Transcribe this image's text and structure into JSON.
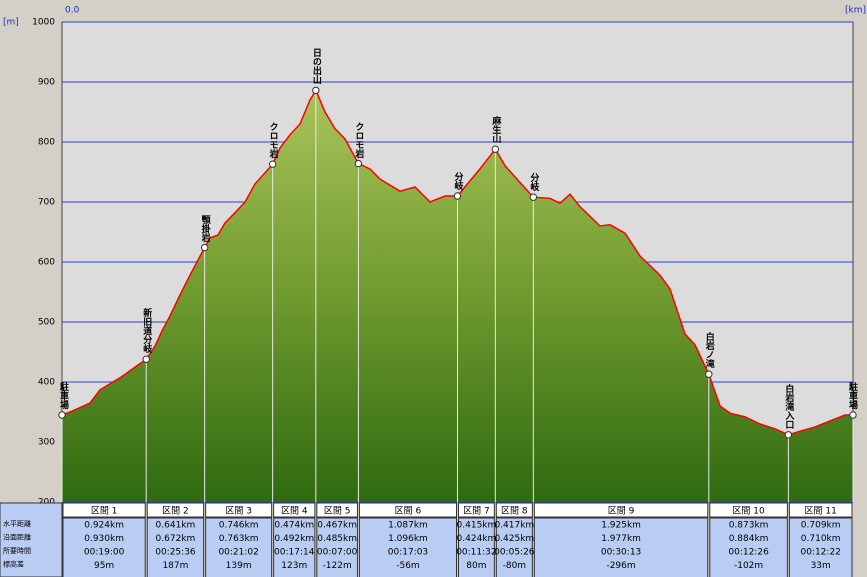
{
  "chart_data": {
    "type": "area",
    "y_unit": "[m]",
    "x_start_label": "0.0",
    "x_unit": "[km]",
    "xlim": [
      0,
      8.678
    ],
    "ylim": [
      200,
      1000
    ],
    "yticks": [
      200,
      300,
      400,
      500,
      600,
      700,
      800,
      900,
      1000
    ],
    "grid": true,
    "line_color": "#ff0000",
    "profile": {
      "x": [
        0,
        0.088,
        0.307,
        0.417,
        0.636,
        0.924,
        1.021,
        1.097,
        1.185,
        1.295,
        1.404,
        1.565,
        1.623,
        1.711,
        1.788,
        1.898,
        2.008,
        2.117,
        2.311,
        2.392,
        2.501,
        2.611,
        2.721,
        2.785,
        2.885,
        2.995,
        3.105,
        3.252,
        3.379,
        3.489,
        3.708,
        3.873,
        4.037,
        4.202,
        4.339,
        4.42,
        4.585,
        4.754,
        4.862,
        5.027,
        5.171,
        5.354,
        5.464,
        5.573,
        5.683,
        5.902,
        6.012,
        6.177,
        6.341,
        6.561,
        6.67,
        6.835,
        6.945,
        7.096,
        7.22,
        7.33,
        7.493,
        7.658,
        7.822,
        7.969,
        8.097,
        8.261,
        8.426,
        8.59,
        8.678
      ],
      "elevation": [
        345,
        350,
        365,
        387,
        407,
        438,
        460,
        485,
        510,
        545,
        578,
        624,
        640,
        645,
        665,
        682,
        700,
        730,
        763,
        790,
        812,
        830,
        870,
        886,
        850,
        822,
        805,
        764,
        755,
        738,
        718,
        725,
        700,
        710,
        710,
        725,
        755,
        788,
        760,
        732,
        708,
        706,
        698,
        713,
        692,
        660,
        662,
        648,
        610,
        578,
        555,
        480,
        462,
        413,
        360,
        348,
        342,
        330,
        322,
        312,
        318,
        325,
        335,
        345,
        345
      ]
    },
    "waypoints": [
      {
        "name": "駐車場",
        "x": 0,
        "elevation": 345
      },
      {
        "name": "新旧道分岐",
        "x": 0.924,
        "elevation": 438
      },
      {
        "name": "顎掛岩",
        "x": 1.565,
        "elevation": 624
      },
      {
        "name": "クロモ岩",
        "x": 2.311,
        "elevation": 763
      },
      {
        "name": "日の出山",
        "x": 2.785,
        "elevation": 886
      },
      {
        "name": "クロモ岩",
        "x": 3.252,
        "elevation": 764
      },
      {
        "name": "分岐",
        "x": 4.339,
        "elevation": 710
      },
      {
        "name": "麻生山",
        "x": 4.754,
        "elevation": 788
      },
      {
        "name": "分岐",
        "x": 5.171,
        "elevation": 708
      },
      {
        "name": "白岩ノ滝",
        "x": 7.096,
        "elevation": 413
      },
      {
        "name": "白岩滝入口",
        "x": 7.969,
        "elevation": 312
      },
      {
        "name": "駐車場",
        "x": 8.678,
        "elevation": 345
      }
    ]
  },
  "table": {
    "row_labels": [
      "水平距離",
      "沿面距離",
      "所要時間",
      "標高差"
    ],
    "sections": [
      {
        "name": "区間 1",
        "cells": [
          "0.924km",
          "0.930km",
          "00:19:00",
          "95m"
        ]
      },
      {
        "name": "区間 2",
        "cells": [
          "0.641km",
          "0.672km",
          "00:25:36",
          "187m"
        ]
      },
      {
        "name": "区間 3",
        "cells": [
          "0.746km",
          "0.763km",
          "00:21:02",
          "139m"
        ]
      },
      {
        "name": "区間 4",
        "cells": [
          "0.474km",
          "0.492km",
          "00:17:14",
          "123m"
        ]
      },
      {
        "name": "区間 5",
        "cells": [
          "0.467km",
          "0.485km",
          "00:07:00",
          "-122m"
        ]
      },
      {
        "name": "区間 6",
        "cells": [
          "1.087km",
          "1.096km",
          "00:17:03",
          "-56m"
        ]
      },
      {
        "name": "区間 7",
        "cells": [
          "0.415km",
          "0.424km",
          "00:11:32",
          "80m"
        ]
      },
      {
        "name": "区間 8",
        "cells": [
          "0.417km",
          "0.425km",
          "00:05:26",
          "-80m"
        ]
      },
      {
        "name": "区間 9",
        "cells": [
          "1.925km",
          "1.977km",
          "00:30:13",
          "-296m"
        ]
      },
      {
        "name": "区間 10",
        "cells": [
          "0.873km",
          "0.884km",
          "00:12:26",
          "-102m"
        ]
      },
      {
        "name": "区間 11",
        "cells": [
          "0.709km",
          "0.710km",
          "00:12:22",
          "33m"
        ]
      }
    ]
  }
}
